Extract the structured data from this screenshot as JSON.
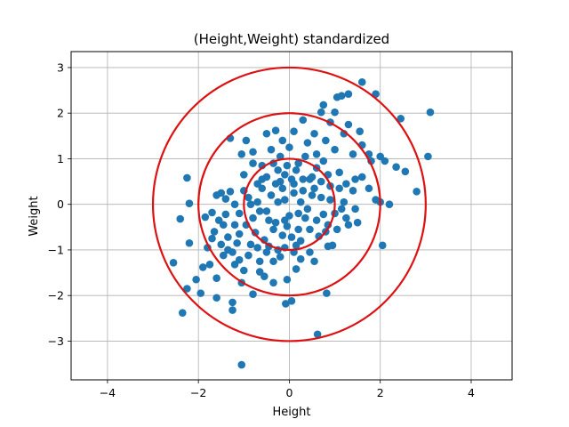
{
  "chart_data": {
    "type": "scatter",
    "title": "(Height,Weight) standardized",
    "xlabel": "Height",
    "ylabel": "Weight",
    "xlim": [
      -4.8,
      4.9
    ],
    "ylim": [
      -3.85,
      3.35
    ],
    "xticks": [
      -4,
      -2,
      0,
      2,
      4
    ],
    "yticks": [
      -3,
      -2,
      -1,
      0,
      1,
      2,
      3
    ],
    "xtick_labels": [
      "−4",
      "−2",
      "0",
      "2",
      "4"
    ],
    "ytick_labels": [
      "−3",
      "−2",
      "−1",
      "0",
      "1",
      "2",
      "3"
    ],
    "grid": true,
    "point_color": "#1f77b4",
    "circle_color": "#dd1111",
    "circles": [
      {
        "center": [
          0,
          0
        ],
        "radius": 1
      },
      {
        "center": [
          0,
          0
        ],
        "radius": 2
      },
      {
        "center": [
          0,
          0
        ],
        "radius": 3
      }
    ],
    "points": [
      [
        -1.05,
        -3.52
      ],
      [
        0.62,
        -2.85
      ],
      [
        -2.35,
        -2.38
      ],
      [
        -1.25,
        -2.32
      ],
      [
        -1.25,
        -2.15
      ],
      [
        -0.08,
        -2.18
      ],
      [
        0.05,
        -2.12
      ],
      [
        -2.25,
        -1.85
      ],
      [
        -2.55,
        -1.28
      ],
      [
        -2.05,
        -1.65
      ],
      [
        -1.95,
        -1.95
      ],
      [
        -1.6,
        -2.05
      ],
      [
        -1.05,
        -1.72
      ],
      [
        -0.8,
        -1.97
      ],
      [
        -0.05,
        -1.65
      ],
      [
        0.82,
        -1.95
      ],
      [
        0.15,
        -1.42
      ],
      [
        -0.55,
        -1.58
      ],
      [
        -0.35,
        -1.72
      ],
      [
        -0.65,
        -1.48
      ],
      [
        -1.2,
        -1.32
      ],
      [
        -1.6,
        -1.62
      ],
      [
        -1.9,
        -1.38
      ],
      [
        -1.75,
        -1.32
      ],
      [
        -2.2,
        -0.85
      ],
      [
        -2.4,
        -0.32
      ],
      [
        -2.2,
        0.02
      ],
      [
        -2.25,
        0.58
      ],
      [
        -1.85,
        -0.28
      ],
      [
        -1.7,
        -0.18
      ],
      [
        -1.4,
        -0.22
      ],
      [
        -1.2,
        -0.45
      ],
      [
        -1.35,
        -0.72
      ],
      [
        -1.5,
        -0.88
      ],
      [
        -1.25,
        -1.05
      ],
      [
        -1.45,
        -1.12
      ],
      [
        -1.1,
        -1.22
      ],
      [
        -0.9,
        -1.12
      ],
      [
        -0.7,
        -0.95
      ],
      [
        -0.5,
        -1.05
      ],
      [
        -0.35,
        -1.25
      ],
      [
        -0.2,
        -1.15
      ],
      [
        -0.1,
        -0.95
      ],
      [
        0.1,
        -1.05
      ],
      [
        0.25,
        -1.2
      ],
      [
        0.45,
        -1.05
      ],
      [
        0.55,
        -1.25
      ],
      [
        0.85,
        -0.92
      ],
      [
        0.95,
        -0.9
      ],
      [
        2.05,
        -0.9
      ],
      [
        -1.6,
        0.2
      ],
      [
        -1.5,
        0.25
      ],
      [
        -1.4,
        0.12
      ],
      [
        -1.3,
        0.28
      ],
      [
        -1.2,
        0.0
      ],
      [
        -1.1,
        -0.2
      ],
      [
        -1.0,
        0.3
      ],
      [
        -0.9,
        0.15
      ],
      [
        -0.8,
        -0.3
      ],
      [
        -0.7,
        0.05
      ],
      [
        -0.6,
        0.35
      ],
      [
        -0.5,
        -0.15
      ],
      [
        -0.4,
        0.2
      ],
      [
        -0.3,
        -0.4
      ],
      [
        -0.2,
        0.5
      ],
      [
        -0.1,
        0.1
      ],
      [
        0.0,
        -0.25
      ],
      [
        0.1,
        0.45
      ],
      [
        0.2,
        -0.55
      ],
      [
        0.3,
        0.3
      ],
      [
        0.4,
        -0.1
      ],
      [
        0.5,
        0.6
      ],
      [
        0.6,
        -0.35
      ],
      [
        0.7,
        0.15
      ],
      [
        0.8,
        -0.6
      ],
      [
        0.9,
        0.4
      ],
      [
        1.0,
        -0.2
      ],
      [
        1.1,
        0.7
      ],
      [
        1.2,
        0.05
      ],
      [
        1.3,
        -0.45
      ],
      [
        1.4,
        0.3
      ],
      [
        1.5,
        -0.4
      ],
      [
        1.6,
        0.6
      ],
      [
        1.75,
        0.35
      ],
      [
        1.9,
        0.1
      ],
      [
        2.0,
        0.05
      ],
      [
        2.2,
        0.0
      ],
      [
        -1.0,
        0.65
      ],
      [
        -0.8,
        0.9
      ],
      [
        -0.6,
        0.85
      ],
      [
        -0.4,
        1.2
      ],
      [
        -0.2,
        1.05
      ],
      [
        0.0,
        1.25
      ],
      [
        0.2,
        0.9
      ],
      [
        0.4,
        1.35
      ],
      [
        0.6,
        1.1
      ],
      [
        0.8,
        1.4
      ],
      [
        1.0,
        1.2
      ],
      [
        1.2,
        1.55
      ],
      [
        1.4,
        1.1
      ],
      [
        1.6,
        1.3
      ],
      [
        1.8,
        0.95
      ],
      [
        2.0,
        1.05
      ],
      [
        2.1,
        0.95
      ],
      [
        2.35,
        0.82
      ],
      [
        2.55,
        0.72
      ],
      [
        -0.95,
        1.4
      ],
      [
        -0.8,
        1.15
      ],
      [
        -0.5,
        1.55
      ],
      [
        -0.3,
        1.62
      ],
      [
        0.1,
        1.6
      ],
      [
        0.3,
        1.85
      ],
      [
        0.55,
        1.55
      ],
      [
        0.7,
        2.02
      ],
      [
        0.75,
        2.18
      ],
      [
        1.0,
        2.02
      ],
      [
        1.05,
        2.35
      ],
      [
        1.15,
        2.38
      ],
      [
        1.3,
        2.42
      ],
      [
        1.6,
        2.68
      ],
      [
        1.9,
        2.42
      ],
      [
        2.45,
        1.88
      ],
      [
        3.1,
        2.02
      ],
      [
        3.05,
        1.05
      ],
      [
        2.8,
        0.28
      ],
      [
        -1.3,
        1.45
      ],
      [
        -1.05,
        1.1
      ],
      [
        -0.6,
        0.55
      ],
      [
        -0.25,
        0.75
      ],
      [
        0.15,
        0.75
      ],
      [
        0.45,
        0.55
      ],
      [
        0.85,
        0.65
      ],
      [
        1.25,
        0.45
      ],
      [
        1.45,
        0.55
      ],
      [
        -1.1,
        -0.65
      ],
      [
        -0.95,
        -0.45
      ],
      [
        -0.75,
        -0.62
      ],
      [
        -0.55,
        -0.78
      ],
      [
        -0.35,
        -0.55
      ],
      [
        -0.15,
        -0.68
      ],
      [
        0.05,
        -0.72
      ],
      [
        0.25,
        -0.8
      ],
      [
        0.45,
        -0.55
      ],
      [
        0.65,
        -0.7
      ],
      [
        0.85,
        -0.45
      ],
      [
        1.05,
        -0.55
      ],
      [
        1.25,
        -0.3
      ],
      [
        1.45,
        -0.1
      ],
      [
        -1.15,
        -0.85
      ],
      [
        -0.85,
        -0.88
      ],
      [
        -0.45,
        -0.92
      ],
      [
        -0.05,
        -0.48
      ],
      [
        0.35,
        -0.3
      ],
      [
        0.75,
        -0.22
      ],
      [
        1.15,
        -0.1
      ],
      [
        -0.7,
        0.45
      ],
      [
        -0.5,
        0.6
      ],
      [
        -0.3,
        0.45
      ],
      [
        -0.1,
        0.65
      ],
      [
        0.1,
        0.25
      ],
      [
        0.3,
        0.55
      ],
      [
        0.5,
        0.2
      ],
      [
        0.7,
        0.5
      ],
      [
        0.9,
        0.1
      ],
      [
        1.1,
        0.35
      ],
      [
        -1.45,
        -0.45
      ],
      [
        -1.65,
        -0.6
      ],
      [
        -1.8,
        -0.95
      ],
      [
        -1.55,
        -0.35
      ],
      [
        -0.15,
        0.35
      ],
      [
        0.05,
        0.55
      ],
      [
        0.25,
        0.05
      ],
      [
        -0.25,
        0.05
      ],
      [
        -0.45,
        -0.35
      ],
      [
        0.6,
        0.8
      ],
      [
        0.35,
        1.05
      ],
      [
        -0.15,
        1.4
      ],
      [
        1.55,
        1.6
      ],
      [
        1.75,
        1.1
      ],
      [
        0.9,
        1.8
      ],
      [
        1.3,
        1.75
      ],
      [
        -0.65,
        -1.25
      ],
      [
        -0.25,
        -1.0
      ],
      [
        0.15,
        -0.9
      ],
      [
        -0.85,
        0.0
      ],
      [
        -0.65,
        -0.15
      ],
      [
        -0.35,
        0.9
      ],
      [
        0.55,
        0.35
      ],
      [
        0.75,
        0.95
      ],
      [
        -1.0,
        -1.45
      ],
      [
        -1.35,
        -1.0
      ],
      [
        -1.7,
        -0.75
      ],
      [
        -0.1,
        -0.35
      ],
      [
        0.2,
        -0.2
      ],
      [
        -0.05,
        0.85
      ]
    ]
  }
}
